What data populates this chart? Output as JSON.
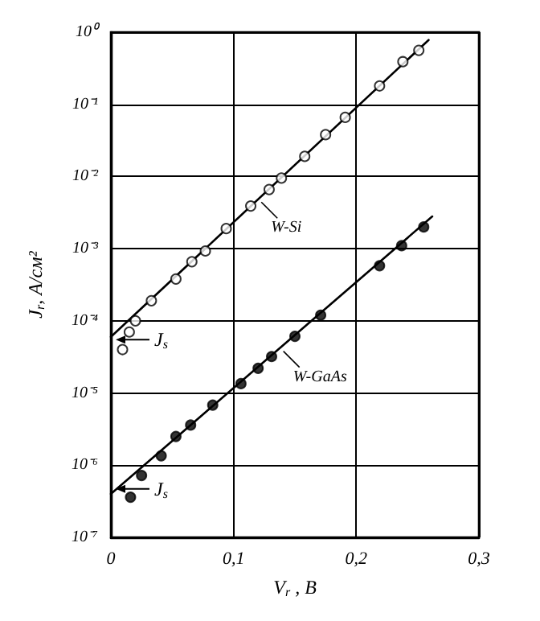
{
  "chart_data": {
    "type": "scatter",
    "xlabel": "V$_{r}$ , В",
    "ylabel": "J$_{r}$, А/см²",
    "log": "y",
    "grid": true,
    "marker": "circle",
    "xlim": [
      0,
      0.3
    ],
    "xticks": [
      0,
      {
        "value": 0.1,
        "label": "0,1"
      },
      {
        "value": 0.2,
        "label": "0,2"
      },
      {
        "value": 0.3,
        "label": "0,3"
      }
    ],
    "ylim": [
      1e-07,
      1
    ],
    "yticks": [
      {
        "value": 1e-07,
        "label": "10⁻⁷"
      },
      {
        "value": 1e-06,
        "label": "10⁻⁶"
      },
      {
        "value": 1e-05,
        "label": "10⁻⁵"
      },
      {
        "value": 0.0001,
        "label": "10⁻⁴"
      },
      {
        "value": 0.001,
        "label": "10⁻³"
      },
      {
        "value": 0.01,
        "label": "10⁻²"
      },
      {
        "value": 0.1,
        "label": "10⁻¹"
      },
      {
        "value": 1,
        "label": "10⁰"
      }
    ],
    "series": [
      {
        "type": "line",
        "marker": "none",
        "color": "#000000",
        "x": [
          0,
          0.259
        ],
        "values": [
          6e-05,
          0.78
        ]
      },
      {
        "type": "line",
        "marker": "none",
        "color": "#000000",
        "x": [
          0,
          0.262
        ],
        "values": [
          4e-07,
          0.0028
        ]
      },
      {
        "color": "#ffffff",
        "x": [
          0.251,
          0.238,
          0.219,
          0.191,
          0.175,
          0.158,
          0.139,
          0.129,
          0.114,
          0.094,
          0.077,
          0.066,
          0.053,
          0.033,
          0.02,
          0.015,
          0.0095
        ],
        "values": [
          0.56,
          0.39,
          0.18,
          0.066,
          0.038,
          0.019,
          0.0095,
          0.0066,
          0.0039,
          0.0019,
          0.00093,
          0.00066,
          0.00038,
          0.00019,
          0.0001,
          7e-05,
          4e-05
        ]
      },
      {
        "color": "#000000",
        "x": [
          0.255,
          0.237,
          0.219,
          0.171,
          0.15,
          0.131,
          0.12,
          0.106,
          0.083,
          0.065,
          0.053,
          0.041,
          0.025,
          0.016
        ],
        "values": [
          0.002,
          0.0011,
          0.00058,
          0.00012,
          6.1e-05,
          3.2e-05,
          2.2e-05,
          1.35e-05,
          6.8e-06,
          3.6e-06,
          2.5e-06,
          1.35e-06,
          7.2e-07,
          3.6e-07
        ]
      }
    ],
    "annotations": [
      {
        "text": "W-Si",
        "x": 0.12,
        "y": 0.0049
      },
      {
        "text": "W-GaAs",
        "x": 0.138,
        "y": 4.2e-05
      },
      {
        "text": "J$_{s}$",
        "x": 0,
        "y": 5.5e-05
      },
      {
        "text": "J$_{s}$",
        "x": 0,
        "y": 4.7e-07
      }
    ]
  }
}
